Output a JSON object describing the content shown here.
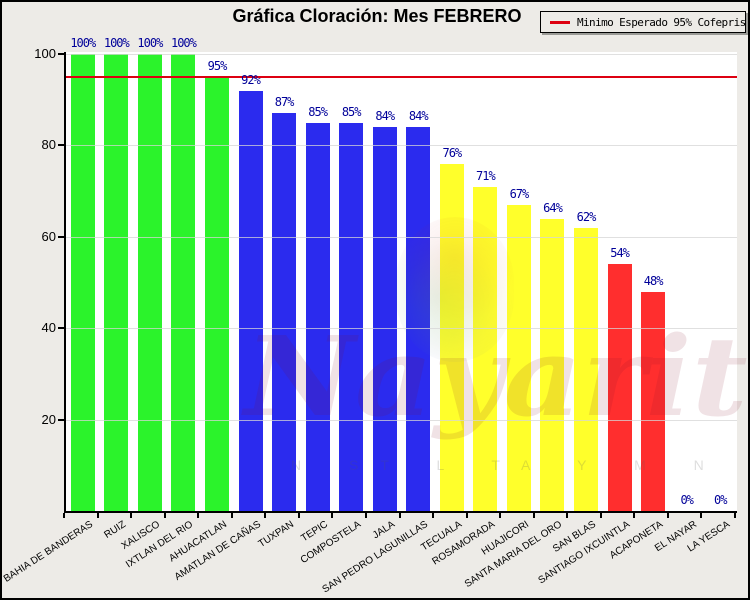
{
  "title": "Gráfica Cloración: Mes FEBRERO",
  "legend": {
    "label": "Minimo Esperado 95% Cofepris",
    "line_color": "#dd0011"
  },
  "watermark": {
    "script_text": "Nayarit",
    "letters": "N ST L TA Y M N O"
  },
  "chart_data": {
    "type": "bar",
    "title": "Gráfica Cloración: Mes FEBRERO",
    "categories": [
      "BAHIA DE BANDERAS",
      "RUIZ",
      "XALISCO",
      "IXTLAN DEL RIO",
      "AHUACATLAN",
      "AMATLAN DE CAÑAS",
      "TUXPAN",
      "TEPIC",
      "COMPOSTELA",
      "JALA",
      "SAN PEDRO LAGUNILLAS",
      "TECUALA",
      "ROSAMORADA",
      "HUAJICORI",
      "SANTA MARIA DEL ORO",
      "SAN BLAS",
      "SANTIAGO IXCUINTLA",
      "ACAPONETA",
      "EL NAYAR",
      "LA YESCA"
    ],
    "values": [
      100,
      100,
      100,
      100,
      95,
      92,
      87,
      85,
      85,
      84,
      84,
      76,
      71,
      67,
      64,
      62,
      54,
      48,
      0,
      0
    ],
    "value_labels": [
      "100%",
      "100%",
      "100%",
      "100%",
      "95%",
      "92%",
      "87%",
      "85%",
      "85%",
      "84%",
      "84%",
      "76%",
      "71%",
      "67%",
      "64%",
      "62%",
      "54%",
      "48%",
      "0%",
      "0%"
    ],
    "bar_colors": [
      "#2bf32b",
      "#2bf32b",
      "#2bf32b",
      "#2bf32b",
      "#2bf32b",
      "#2b2bee",
      "#2b2bee",
      "#2b2bee",
      "#2b2bee",
      "#2b2bee",
      "#2b2bee",
      "#ffff2b",
      "#ffff2b",
      "#ffff2b",
      "#ffff2b",
      "#ffff2b",
      "#ff2e2e",
      "#ff2e2e",
      "none",
      "none"
    ],
    "xlabel": "",
    "ylabel": "",
    "ylim": [
      0,
      100
    ],
    "yticks": [
      20,
      40,
      60,
      80,
      100
    ],
    "grid": true,
    "legend_position": "top-right",
    "reference_line": {
      "value": 95,
      "label": "Minimo Esperado 95% Cofepris",
      "color": "#dd0011"
    },
    "value_label_color": "#000099"
  }
}
